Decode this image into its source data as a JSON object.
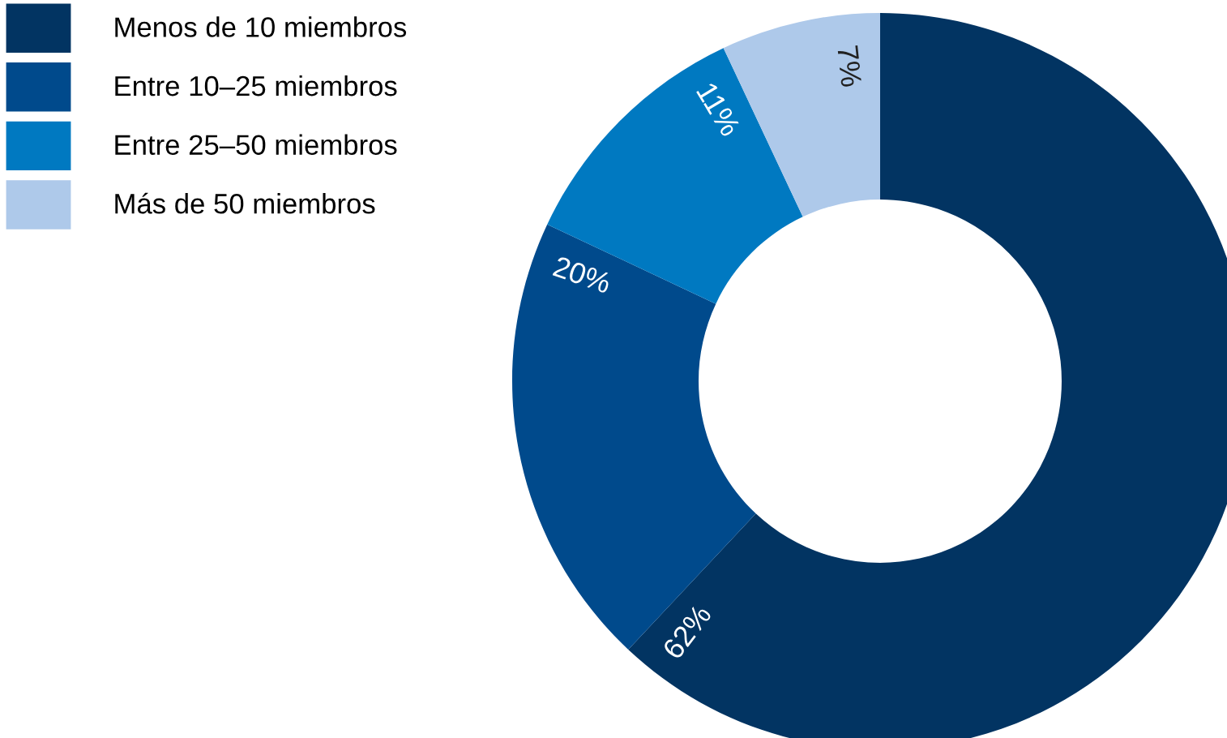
{
  "chart_data": {
    "type": "donut",
    "categories": [
      "Menos de 10 miembros",
      "Entre 10–25 miembros",
      "Entre 25–50 miembros",
      "Más de 50 miembros"
    ],
    "values": [
      62,
      20,
      11,
      7
    ],
    "colors": [
      "#023462",
      "#004a8c",
      "#0079c1",
      "#aec9ea"
    ],
    "value_labels": [
      "62%",
      "20%",
      "11%",
      "7%"
    ],
    "legend": "top left"
  }
}
